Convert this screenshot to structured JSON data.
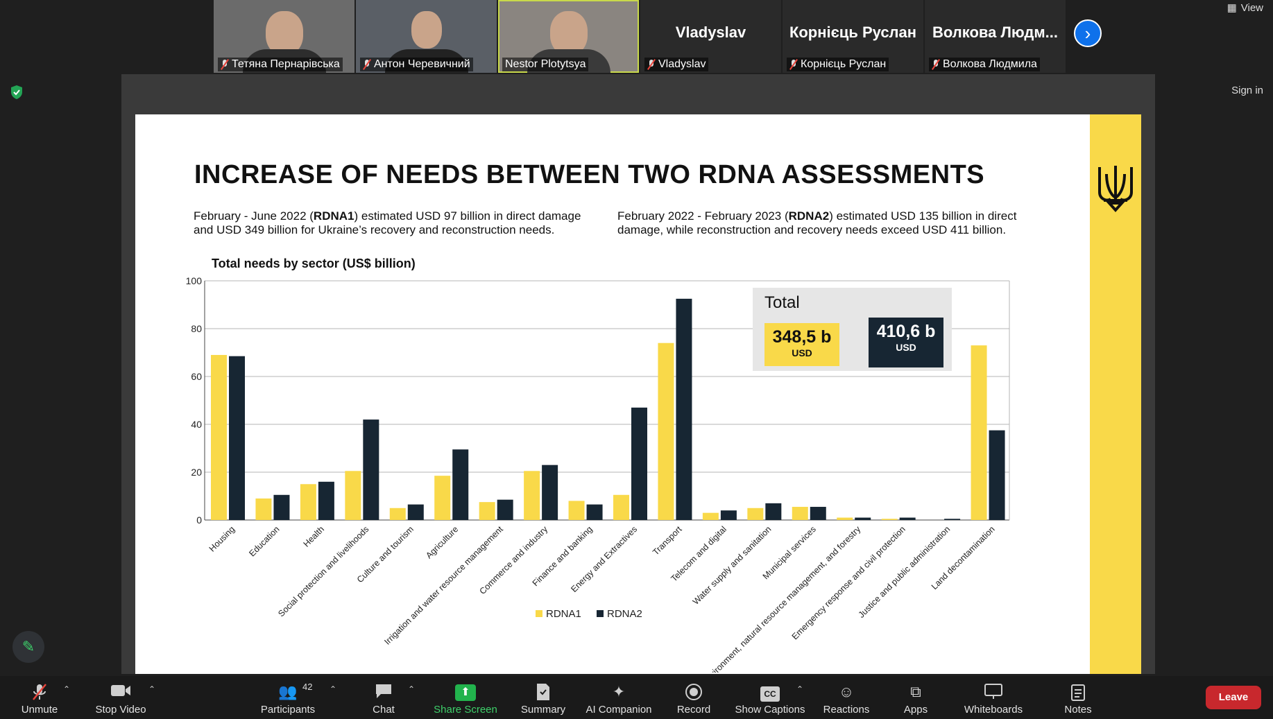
{
  "participants": [
    {
      "display": "",
      "name": "Тетяна Пернарівська",
      "muted": true,
      "video": true
    },
    {
      "display": "",
      "name": "Антон Черевичний",
      "muted": true,
      "video": true
    },
    {
      "display": "",
      "name": "Nestor Plotytsya",
      "muted": false,
      "video": true,
      "active": true
    },
    {
      "display": "Vladyslav",
      "name": "Vladyslav",
      "muted": true,
      "video": false
    },
    {
      "display": "Корнієць Руслан",
      "name": "Корнієць Руслан",
      "muted": true,
      "video": false
    },
    {
      "display": "Волкова Людм...",
      "name": "Волкова Людмила",
      "muted": true,
      "video": false
    }
  ],
  "top": {
    "view_label": "View",
    "sign_in_label": "Sign in"
  },
  "slide": {
    "title": "INCREASE OF NEEDS BETWEEN TWO RDNA ASSESSMENTS",
    "left_para": {
      "pre": "February - June 2022 (",
      "bold": "RDNA1",
      "post": ") estimated USD 97 billion in direct damage and USD 349 billion for Ukraine’s recovery and reconstruction needs."
    },
    "right_para": {
      "pre": "February 2022 - February 2023 (",
      "bold": "RDNA2",
      "post": ") estimated USD 135 billion in direct damage, while reconstruction and recovery needs exceed USD 411 billion."
    },
    "total": {
      "label": "Total",
      "rdna1_amount": "348,5 b",
      "rdna1_currency": "USD",
      "rdna2_amount": "410,6 b",
      "rdna2_currency": "USD"
    },
    "colors": {
      "rdna1": "#f9d949",
      "rdna2": "#172633",
      "band": "#f9d949"
    }
  },
  "chart_data": {
    "type": "bar",
    "title": "Total needs by sector (US$ billion)",
    "ylim": [
      0,
      100
    ],
    "yticks": [
      0,
      20,
      40,
      60,
      80,
      100
    ],
    "grid": true,
    "legend": "bottom",
    "categories": [
      "Housing",
      "Education",
      "Health",
      "Social protection and livelihoods",
      "Culture and tourism",
      "Agriculture",
      "Irrigation and water resource management",
      "Commerce and industry",
      "Finance and banking",
      "Energy and Extractives",
      "Transport",
      "Telecom and digital",
      "Water supply and sanitation",
      "Municipal services",
      "Environment, natural resource management, and forestry",
      "Emergency response and civil protection",
      "Justice and public administration",
      "Land decontamination"
    ],
    "series": [
      {
        "name": "RDNA1",
        "color": "#f9d949",
        "values": [
          69,
          9,
          15,
          20.5,
          5,
          18.5,
          7.5,
          20.5,
          8,
          10.5,
          74,
          3,
          5,
          5.5,
          1,
          0.5,
          0,
          73
        ]
      },
      {
        "name": "RDNA2",
        "color": "#172633",
        "values": [
          68.5,
          10.5,
          16,
          42,
          6.5,
          29.5,
          8.5,
          23,
          6.5,
          47,
          92.5,
          4,
          7,
          5.5,
          1,
          1,
          0.5,
          37.5
        ]
      }
    ]
  },
  "toolbar": {
    "unmute": "Unmute",
    "stop_video": "Stop Video",
    "participants": "Participants",
    "participants_count": "42",
    "chat": "Chat",
    "share_screen": "Share Screen",
    "summary": "Summary",
    "ai_companion": "AI Companion",
    "record": "Record",
    "show_captions": "Show Captions",
    "cc": "CC",
    "reactions": "Reactions",
    "apps": "Apps",
    "whiteboards": "Whiteboards",
    "notes": "Notes",
    "leave": "Leave"
  }
}
